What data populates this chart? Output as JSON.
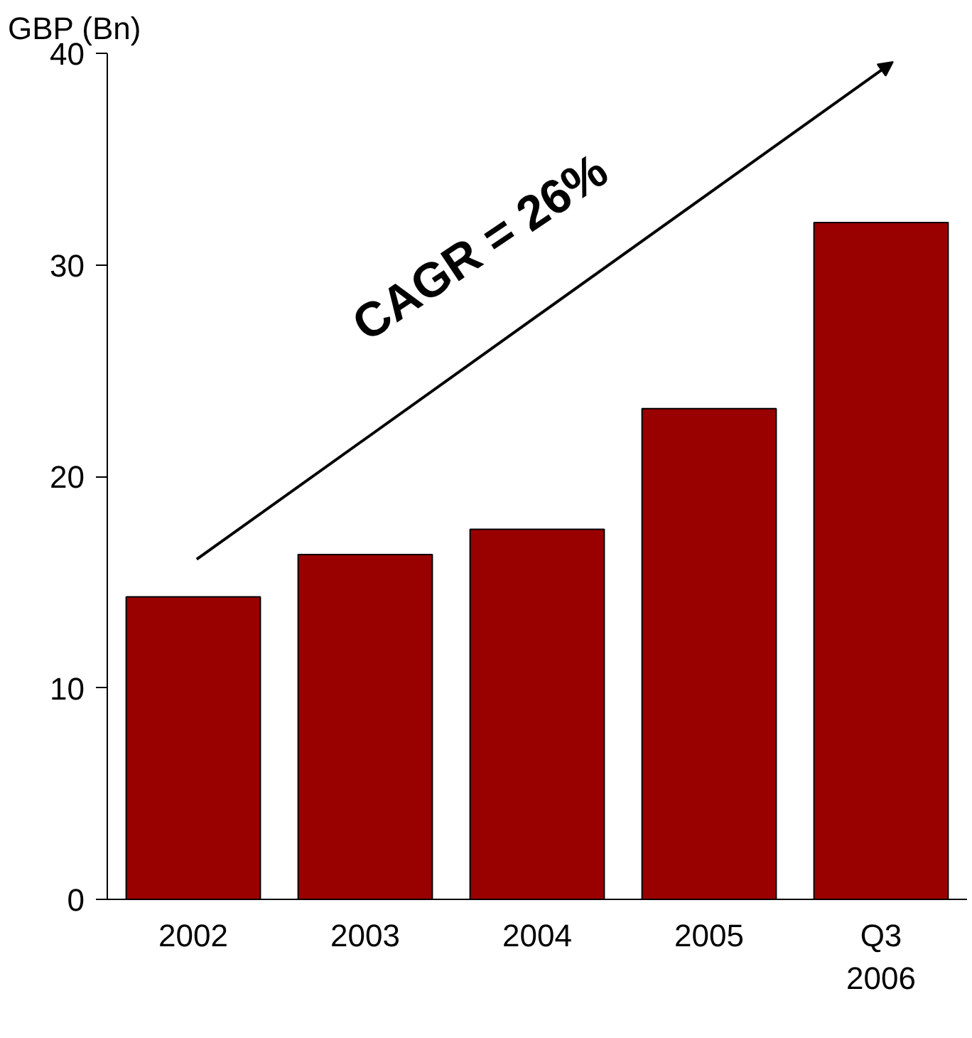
{
  "chart_data": {
    "type": "bar",
    "ylabel": "GBP (Bn)",
    "categories": [
      "2002",
      "2003",
      "2004",
      "2005",
      "Q3\n2006"
    ],
    "values": [
      14.3,
      16.3,
      17.5,
      23.2,
      32.0
    ],
    "color": "#990000",
    "ylim": [
      0,
      40
    ],
    "yticks": [
      0,
      10,
      20,
      30,
      40
    ],
    "grid": false,
    "annotations": [
      "CAGR = 26%"
    ]
  }
}
